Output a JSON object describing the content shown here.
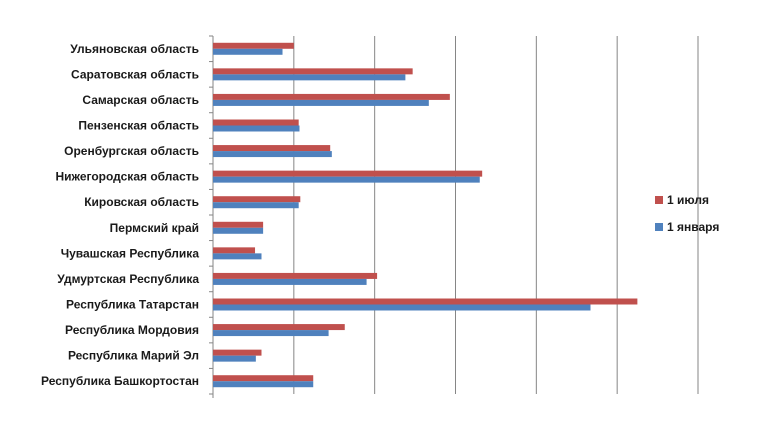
{
  "chart_data": {
    "type": "bar",
    "orientation": "horizontal",
    "title": "",
    "xlabel": "",
    "ylabel": "",
    "grid": true,
    "legend_position": "right",
    "xlim": [
      0,
      6
    ],
    "categories": [
      "Ульяновская  область",
      "Саратовская  область",
      "Самарская  область",
      "Пензенская  область",
      "Оренбургская  область",
      "Нижегородская  область",
      "Кировская  область",
      "Пермский  край",
      "Чувашская  Республика",
      "Удмуртская  Республика",
      "Республика  Татарстан",
      "Республика  Мордовия",
      "Республика  Марий  Эл",
      "Республика  Башкортостан"
    ],
    "series": [
      {
        "name": "1  июля",
        "color": "#c0504d",
        "values": [
          1.0,
          2.47,
          2.93,
          1.06,
          1.45,
          3.33,
          1.08,
          0.62,
          0.52,
          2.03,
          5.25,
          1.63,
          0.6,
          1.24
        ]
      },
      {
        "name": "1  января",
        "color": "#4f81bd",
        "values": [
          0.86,
          2.38,
          2.67,
          1.07,
          1.47,
          3.3,
          1.06,
          0.62,
          0.6,
          1.9,
          4.67,
          1.43,
          0.53,
          1.24
        ]
      }
    ]
  }
}
